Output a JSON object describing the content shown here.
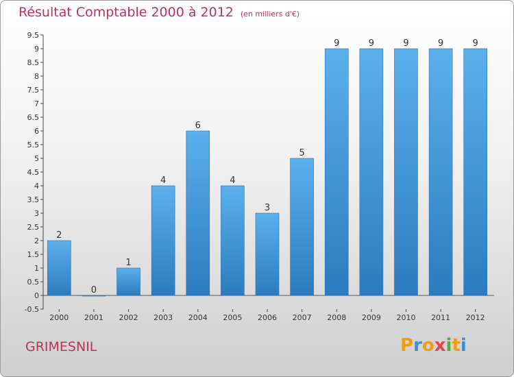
{
  "title": "Résultat Comptable 2000 à 2012",
  "unit": "(en milliers d'€)",
  "commune": "GRIMESNIL",
  "brand": {
    "letters": [
      "P",
      "r",
      "o",
      "x",
      "i",
      "t",
      "i"
    ],
    "colors": [
      "#f39c12",
      "#3b8fd6",
      "#f39c12",
      "#e8434f",
      "#4fae3f",
      "#f39c12",
      "#3b8fd6"
    ]
  },
  "colors": {
    "bar": "#4a9fdf",
    "bar_dark": "#2a7bbf",
    "text": "#c0305a"
  },
  "chart_data": {
    "type": "bar",
    "categories": [
      "2000",
      "2001",
      "2002",
      "2003",
      "2004",
      "2005",
      "2006",
      "2007",
      "2008",
      "2009",
      "2010",
      "2011",
      "2012"
    ],
    "values": [
      2,
      0,
      1,
      4,
      6,
      4,
      3,
      5,
      9,
      9,
      9,
      9,
      9
    ],
    "data_labels": [
      "2",
      "0",
      "1",
      "4",
      "6",
      "4",
      "3",
      "5",
      "9",
      "9",
      "9",
      "9",
      "9"
    ],
    "ylim": [
      -0.5,
      9.5
    ],
    "yticks": [
      "-0.5",
      "0",
      "0.5",
      "1",
      "1.5",
      "2",
      "2.5",
      "3",
      "3.5",
      "4",
      "4.5",
      "5",
      "5.5",
      "6",
      "6.5",
      "7",
      "7.5",
      "8",
      "8.5",
      "9",
      "9.5"
    ],
    "ytick_values": [
      -0.5,
      0,
      0.5,
      1,
      1.5,
      2,
      2.5,
      3,
      3.5,
      4,
      4.5,
      5,
      5.5,
      6,
      6.5,
      7,
      7.5,
      8,
      8.5,
      9,
      9.5
    ],
    "grid": false
  }
}
